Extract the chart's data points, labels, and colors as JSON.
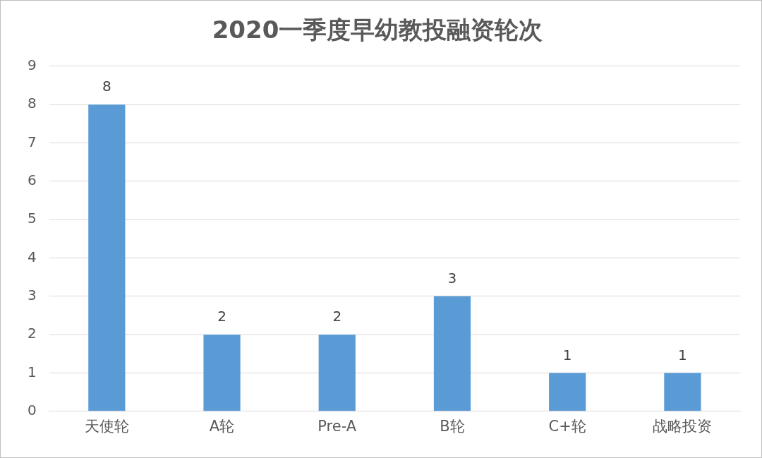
{
  "chart_data": {
    "type": "bar",
    "title": "2020一季度早幼教投融资轮次",
    "categories": [
      "天使轮",
      "A轮",
      "Pre-A",
      "B轮",
      "C+轮",
      "战略投资"
    ],
    "values": [
      8,
      2,
      2,
      3,
      1,
      1
    ],
    "color": "#5b9bd5",
    "ylim": [
      0,
      9
    ],
    "yticks": [
      0,
      1,
      2,
      3,
      4,
      5,
      6,
      7,
      8,
      9
    ],
    "grid": "y",
    "data_labels": true
  }
}
